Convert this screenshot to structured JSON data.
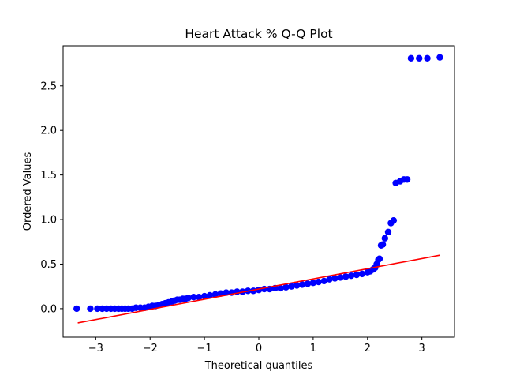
{
  "chart_data": {
    "type": "scatter",
    "title": "Heart Attack % Q-Q Plot",
    "xlabel": "Theoretical quantiles",
    "ylabel": "Ordered Values",
    "xlim": [
      -3.6,
      3.6
    ],
    "ylim": [
      -0.32,
      2.95
    ],
    "xticks": [
      -3,
      -2,
      -1,
      0,
      1,
      2,
      3
    ],
    "xtick_labels": [
      "−3",
      "−2",
      "−1",
      "0",
      "1",
      "2",
      "3"
    ],
    "yticks": [
      0.0,
      0.5,
      1.0,
      1.5,
      2.0,
      2.5
    ],
    "ytick_labels": [
      "0.0",
      "0.5",
      "1.0",
      "1.5",
      "2.0",
      "2.5"
    ],
    "grid": false,
    "legend": "none",
    "series": [
      {
        "kind": "points",
        "color": "#0000ff",
        "x": [
          -3.35,
          -3.1,
          -2.97,
          -2.88,
          -2.8,
          -2.72,
          -2.65,
          -2.58,
          -2.52,
          -2.46,
          -2.4,
          -2.33,
          -2.26,
          -2.18,
          -2.1,
          -2.03,
          -1.96,
          -1.9,
          -1.84,
          -1.78,
          -1.72,
          -1.66,
          -1.6,
          -1.55,
          -1.5,
          -1.45,
          -1.4,
          -1.35,
          -1.3,
          -1.2,
          -1.1,
          -1.0,
          -0.9,
          -0.8,
          -0.7,
          -0.6,
          -0.5,
          -0.4,
          -0.3,
          -0.2,
          -0.1,
          0.0,
          0.1,
          0.2,
          0.3,
          0.4,
          0.5,
          0.6,
          0.7,
          0.8,
          0.9,
          1.0,
          1.1,
          1.2,
          1.3,
          1.4,
          1.5,
          1.6,
          1.7,
          1.8,
          1.9,
          2.0,
          2.05,
          2.1,
          2.14,
          2.17,
          2.2,
          2.22,
          2.25,
          2.28,
          2.32,
          2.38,
          2.43,
          2.48,
          2.52,
          2.6,
          2.67,
          2.73,
          2.8,
          2.95,
          3.1,
          3.33
        ],
        "y": [
          0.0,
          0.0,
          0.0,
          0.0,
          0.0,
          0.0,
          0.0,
          0.0,
          0.0,
          0.0,
          0.0,
          0.0,
          0.01,
          0.01,
          0.01,
          0.02,
          0.03,
          0.03,
          0.04,
          0.05,
          0.06,
          0.07,
          0.08,
          0.09,
          0.1,
          0.1,
          0.11,
          0.11,
          0.12,
          0.13,
          0.13,
          0.14,
          0.15,
          0.16,
          0.17,
          0.18,
          0.18,
          0.19,
          0.19,
          0.2,
          0.2,
          0.21,
          0.22,
          0.22,
          0.23,
          0.23,
          0.24,
          0.25,
          0.26,
          0.27,
          0.28,
          0.29,
          0.3,
          0.31,
          0.33,
          0.34,
          0.35,
          0.36,
          0.37,
          0.38,
          0.39,
          0.41,
          0.42,
          0.44,
          0.46,
          0.5,
          0.55,
          0.56,
          0.71,
          0.72,
          0.79,
          0.86,
          0.96,
          0.99,
          1.41,
          1.43,
          1.45,
          1.45,
          2.81,
          2.81,
          2.81,
          2.82
        ]
      },
      {
        "kind": "line",
        "color": "#ff0000",
        "x": [
          -3.33,
          3.33
        ],
        "y": [
          -0.16,
          0.6
        ]
      }
    ]
  }
}
